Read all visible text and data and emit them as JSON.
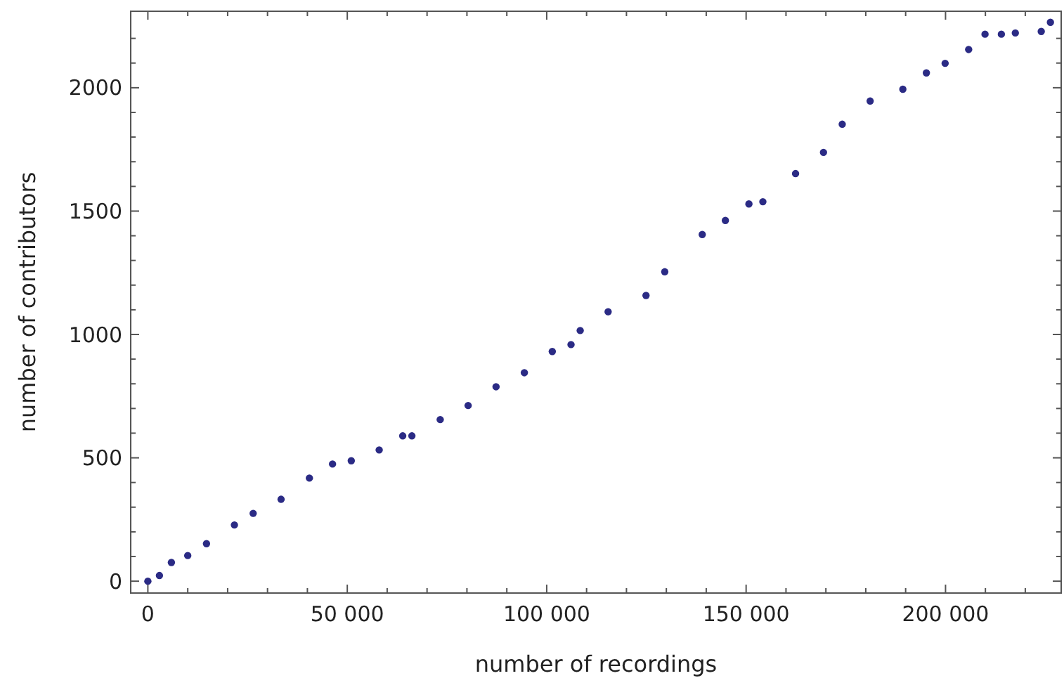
{
  "chart_data": {
    "type": "scatter",
    "xlabel": "number of recordings",
    "ylabel": "number of contributors",
    "marker": "circle",
    "grid": false,
    "xlim": [
      -4300,
      229000
    ],
    "ylim": [
      -48,
      2310
    ],
    "xticks": [
      {
        "value": 0,
        "label": "0"
      },
      {
        "value": 10000,
        "label": null
      },
      {
        "value": 20000,
        "label": null
      },
      {
        "value": 30000,
        "label": null
      },
      {
        "value": 40000,
        "label": null
      },
      {
        "value": 50000,
        "label": "50 000"
      },
      {
        "value": 60000,
        "label": null
      },
      {
        "value": 70000,
        "label": null
      },
      {
        "value": 80000,
        "label": null
      },
      {
        "value": 90000,
        "label": null
      },
      {
        "value": 100000,
        "label": "100 000"
      },
      {
        "value": 110000,
        "label": null
      },
      {
        "value": 120000,
        "label": null
      },
      {
        "value": 130000,
        "label": null
      },
      {
        "value": 140000,
        "label": null
      },
      {
        "value": 150000,
        "label": "150 000"
      },
      {
        "value": 160000,
        "label": null
      },
      {
        "value": 170000,
        "label": null
      },
      {
        "value": 180000,
        "label": null
      },
      {
        "value": 190000,
        "label": null
      },
      {
        "value": 200000,
        "label": "200 000"
      },
      {
        "value": 210000,
        "label": null
      },
      {
        "value": 220000,
        "label": null
      }
    ],
    "yticks": [
      0,
      {
        "value": 100,
        "label": null
      },
      {
        "value": 200,
        "label": null
      },
      {
        "value": 300,
        "label": null
      },
      {
        "value": 400,
        "label": null
      },
      500,
      {
        "value": 600,
        "label": null
      },
      {
        "value": 700,
        "label": null
      },
      {
        "value": 800,
        "label": null
      },
      {
        "value": 900,
        "label": null
      },
      1000,
      {
        "value": 1100,
        "label": null
      },
      {
        "value": 1200,
        "label": null
      },
      {
        "value": 1300,
        "label": null
      },
      {
        "value": 1400,
        "label": null
      },
      1500,
      {
        "value": 1600,
        "label": null
      },
      {
        "value": 1700,
        "label": null
      },
      {
        "value": 1800,
        "label": null
      },
      {
        "value": 1900,
        "label": null
      },
      2000,
      {
        "value": 2100,
        "label": null
      },
      {
        "value": 2200,
        "label": null
      }
    ],
    "series": [
      {
        "color": "#2b2b85",
        "x": [
          0,
          2900,
          5900,
          10000,
          14700,
          21700,
          26400,
          33400,
          40500,
          46300,
          51000,
          58000,
          63900,
          66200,
          73300,
          80300,
          87300,
          94400,
          101400,
          106100,
          108400,
          115400,
          124900,
          129600,
          139000,
          144800,
          150700,
          154200,
          162400,
          169400,
          174100,
          181100,
          189300,
          195200,
          199900,
          205800,
          209900,
          214000,
          217500,
          224000,
          226300
        ],
        "values": [
          0,
          23,
          76,
          104,
          152,
          228,
          275,
          332,
          418,
          475,
          488,
          532,
          589,
          589,
          655,
          712,
          788,
          845,
          931,
          959,
          1016,
          1092,
          1158,
          1254,
          1405,
          1462,
          1529,
          1538,
          1652,
          1738,
          1852,
          1946,
          1994,
          2060,
          2099,
          2155,
          2217,
          2217,
          2222,
          2228,
          2265
        ]
      }
    ]
  }
}
